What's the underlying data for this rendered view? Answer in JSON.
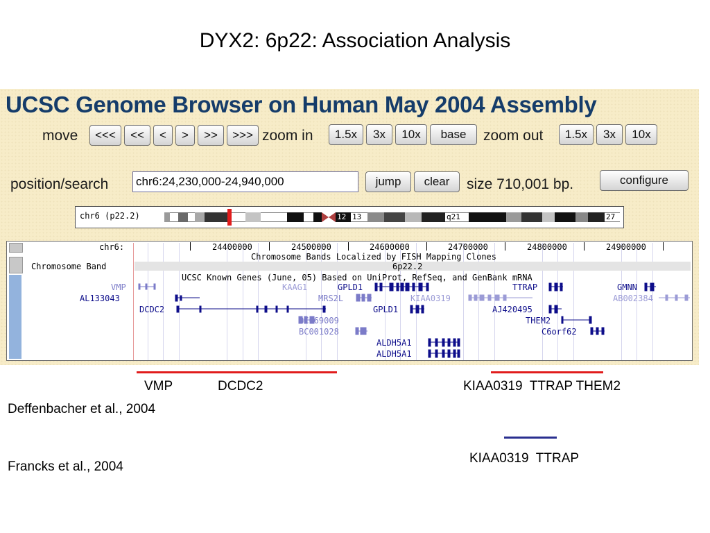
{
  "slide": {
    "title": "DYX2: 6p22: Association Analysis",
    "refs": [
      "Deffenbacher et al., 2004",
      "Francks et al., 2004"
    ],
    "deff_labels": [
      "VMP",
      "DCDC2",
      "KIAA0319  TTRAP THEM2"
    ],
    "francks_label": "KIAA0319  TTRAP",
    "colors": {
      "red": "#e11c1c",
      "blue": "#2a2f8f"
    }
  },
  "browser": {
    "title": "UCSC Genome Browser on Human May 2004 Assembly",
    "move_label": "move",
    "move_buttons": [
      "<<<",
      "<<",
      "<",
      ">",
      ">>",
      ">>>"
    ],
    "zoom_in_label": "zoom in",
    "zoom_in_buttons": [
      "1.5x",
      "3x",
      "10x",
      "base"
    ],
    "zoom_out_label": "zoom out",
    "zoom_out_buttons": [
      "1.5x",
      "3x",
      "10x"
    ],
    "position_label": "position/search",
    "position_value": "chr6:24,230,000-24,940,000",
    "jump_label": "jump",
    "clear_label": "clear",
    "size_text": "size 710,001 bp.",
    "configure_label": "configure",
    "ideogram": {
      "label": "chr6 (p22.2)",
      "bands": [
        "12",
        "13",
        "q21",
        "27"
      ]
    },
    "tracks": {
      "chrom_label": "chr6:",
      "positions": [
        "24400000",
        "24500000",
        "24600000",
        "24700000",
        "24800000",
        "24900000"
      ],
      "band_track_label": "Chromosome Band",
      "band_header": "Chromosome Bands Localized by FISH Mapping Clones",
      "band_name": "6p22.2",
      "genes_header": "UCSC Known Genes (June, 05) Based on UniProt, RefSeq, and GenBank mRNA",
      "left_genes": [
        "VMP",
        "AL133043",
        "DCDC2"
      ],
      "genes": [
        "KAAG1",
        "GPLD1",
        "TTRAP",
        "GMNN",
        "MRS2L",
        "KIAA0319",
        "AB002384",
        "GPLD1",
        "AJ420495",
        "BC069009",
        "THEM2",
        "BC001028",
        "C6orf62",
        "ALDH5A1",
        "ALDH5A1"
      ]
    }
  }
}
